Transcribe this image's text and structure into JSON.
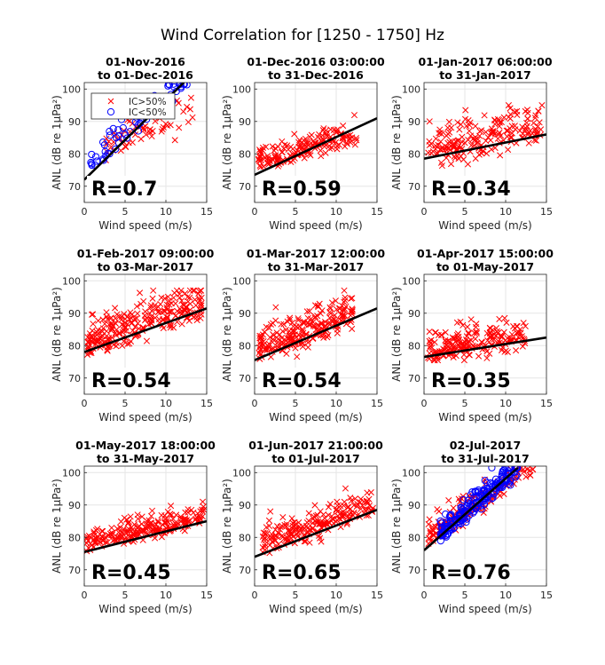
{
  "figure": {
    "title": "Wind Correlation for [1250 - 1750] Hz",
    "legend": {
      "placement": "top-left of first panel",
      "entries": [
        {
          "label": "IC>50%",
          "marker": "x",
          "color": "#ff0000"
        },
        {
          "label": "IC<50%",
          "marker": "o",
          "color": "#0000ff"
        }
      ]
    },
    "colors": {
      "ic_above": "#ff0000",
      "ic_below": "#0000ff",
      "fit": "#000000",
      "grid": "#e6e6e6"
    }
  },
  "chart_data": [
    {
      "type": "scatter",
      "title_line1": "01-Nov-2016",
      "title_line2": "to 01-Dec-2016",
      "xlabel": "Wind speed (m/s)",
      "ylabel": "ANL (dB re 1μPa²)",
      "xlim": [
        0,
        15
      ],
      "ylim": [
        65,
        102
      ],
      "xticks": [
        0,
        5,
        10,
        15
      ],
      "yticks": [
        70,
        80,
        90,
        100
      ],
      "grid": true,
      "r_label": "R=0.7",
      "fit": [
        [
          0,
          72
        ],
        [
          12.2,
          102
        ]
      ],
      "cloud_red": {
        "seed": 11,
        "n": 60,
        "xmin": 2.5,
        "xmax": 13.5,
        "a": 77,
        "b": 1.0,
        "noise": 4.5,
        "ymin": 76,
        "ymax": 98
      },
      "cloud_blue": {
        "seed": 12,
        "n": 60,
        "xmin": 0.8,
        "xmax": 12.8,
        "a": 74,
        "b": 2.2,
        "noise": 3.5,
        "ymin": 76.5,
        "ymax": 101.5
      }
    },
    {
      "type": "scatter",
      "title_line1": "01-Dec-2016 03:00:00",
      "title_line2": "to 31-Dec-2016",
      "xlabel": "Wind speed (m/s)",
      "ylabel": "ANL (dB re 1μPa²)",
      "xlim": [
        0,
        15
      ],
      "ylim": [
        65,
        102
      ],
      "xticks": [
        0,
        5,
        10,
        15
      ],
      "yticks": [
        70,
        80,
        90,
        100
      ],
      "grid": true,
      "r_label": "R=0.59",
      "fit": [
        [
          0,
          73.5
        ],
        [
          15,
          91
        ]
      ],
      "cloud_red": {
        "seed": 21,
        "n": 170,
        "xmin": 0.5,
        "xmax": 12.5,
        "a": 75.5,
        "b": 0.75,
        "noise": 2.8,
        "ymin": 74,
        "ymax": 97
      }
    },
    {
      "type": "scatter",
      "title_line1": "01-Jan-2017 06:00:00",
      "title_line2": "to 31-Jan-2017",
      "xlabel": "Wind speed (m/s)",
      "ylabel": "ANL (dB re 1μPa²)",
      "xlim": [
        0,
        15
      ],
      "ylim": [
        65,
        102
      ],
      "xticks": [
        0,
        5,
        10,
        15
      ],
      "yticks": [
        70,
        80,
        90,
        100
      ],
      "grid": true,
      "r_label": "R=0.34",
      "fit": [
        [
          0,
          78.5
        ],
        [
          15,
          86
        ]
      ],
      "cloud_red": {
        "seed": 31,
        "n": 190,
        "xmin": 0.5,
        "xmax": 14.5,
        "a": 79,
        "b": 0.5,
        "noise": 4.5,
        "ymin": 76,
        "ymax": 95
      }
    },
    {
      "type": "scatter",
      "title_line1": "01-Feb-2017 09:00:00",
      "title_line2": "to 03-Mar-2017",
      "xlabel": "Wind speed (m/s)",
      "ylabel": "ANL (dB re 1μPa²)",
      "xlim": [
        0,
        15
      ],
      "ylim": [
        65,
        102
      ],
      "xticks": [
        0,
        5,
        10,
        15
      ],
      "yticks": [
        70,
        80,
        90,
        100
      ],
      "grid": true,
      "r_label": "R=0.54",
      "fit": [
        [
          0,
          78
        ],
        [
          15,
          91.5
        ]
      ],
      "cloud_red": {
        "seed": 41,
        "n": 260,
        "xmin": 0.3,
        "xmax": 14.5,
        "a": 79,
        "b": 0.85,
        "noise": 4.5,
        "ymin": 75,
        "ymax": 97
      }
    },
    {
      "type": "scatter",
      "title_line1": "01-Mar-2017 12:00:00",
      "title_line2": "to 31-Mar-2017",
      "xlabel": "Wind speed (m/s)",
      "ylabel": "ANL (dB re 1μPa²)",
      "xlim": [
        0,
        15
      ],
      "ylim": [
        65,
        102
      ],
      "xticks": [
        0,
        5,
        10,
        15
      ],
      "yticks": [
        70,
        80,
        90,
        100
      ],
      "grid": true,
      "r_label": "R=0.54",
      "fit": [
        [
          0,
          75.5
        ],
        [
          15,
          91.5
        ]
      ],
      "cloud_red": {
        "seed": 51,
        "n": 230,
        "xmin": 0.5,
        "xmax": 12,
        "a": 76.5,
        "b": 1.0,
        "noise": 4.0,
        "ymin": 74,
        "ymax": 97
      }
    },
    {
      "type": "scatter",
      "title_line1": "01-Apr-2017 15:00:00",
      "title_line2": "to 01-May-2017",
      "xlabel": "Wind speed (m/s)",
      "ylabel": "ANL (dB re 1μPa²)",
      "xlim": [
        0,
        15
      ],
      "ylim": [
        65,
        102
      ],
      "xticks": [
        0,
        5,
        10,
        15
      ],
      "yticks": [
        70,
        80,
        90,
        100
      ],
      "grid": true,
      "r_label": "R=0.35",
      "fit": [
        [
          0,
          76.5
        ],
        [
          15,
          82.5
        ]
      ],
      "cloud_red": {
        "seed": 61,
        "n": 200,
        "xmin": 0.5,
        "xmax": 12.5,
        "a": 76.5,
        "b": 0.4,
        "noise": 3.5,
        "ymin": 75.5,
        "ymax": 94
      }
    },
    {
      "type": "scatter",
      "title_line1": "01-May-2017 18:00:00",
      "title_line2": "to 31-May-2017",
      "xlabel": "Wind speed (m/s)",
      "ylabel": "ANL (dB re 1μPa²)",
      "xlim": [
        0,
        15
      ],
      "ylim": [
        65,
        102
      ],
      "xticks": [
        0,
        5,
        10,
        15
      ],
      "yticks": [
        70,
        80,
        90,
        100
      ],
      "grid": true,
      "r_label": "R=0.45",
      "fit": [
        [
          0,
          75.5
        ],
        [
          15,
          85
        ]
      ],
      "cloud_red": {
        "seed": 71,
        "n": 220,
        "xmin": 0.3,
        "xmax": 14.8,
        "a": 77,
        "b": 0.55,
        "noise": 2.5,
        "ymin": 75.5,
        "ymax": 91
      }
    },
    {
      "type": "scatter",
      "title_line1": "01-Jun-2017 21:00:00",
      "title_line2": "to 01-Jul-2017",
      "xlabel": "Wind speed (m/s)",
      "ylabel": "ANL (dB re 1μPa²)",
      "xlim": [
        0,
        15
      ],
      "ylim": [
        65,
        102
      ],
      "xticks": [
        0,
        5,
        10,
        15
      ],
      "yticks": [
        70,
        80,
        90,
        100
      ],
      "grid": true,
      "r_label": "R=0.65",
      "fit": [
        [
          0,
          74
        ],
        [
          15,
          88.5
        ]
      ],
      "cloud_red": {
        "seed": 81,
        "n": 210,
        "xmin": 1,
        "xmax": 14.5,
        "a": 76,
        "b": 0.85,
        "noise": 3.2,
        "ymin": 75,
        "ymax": 96
      }
    },
    {
      "type": "scatter",
      "title_line1": "02-Jul-2017",
      "title_line2": "to 31-Jul-2017",
      "xlabel": "Wind speed (m/s)",
      "ylabel": "ANL (dB re 1μPa²)",
      "xlim": [
        0,
        15
      ],
      "ylim": [
        65,
        102
      ],
      "xticks": [
        0,
        5,
        10,
        15
      ],
      "yticks": [
        70,
        80,
        90,
        100
      ],
      "grid": true,
      "r_label": "R=0.76",
      "fit": [
        [
          0,
          76
        ],
        [
          11.5,
          101.5
        ]
      ],
      "cloud_red": {
        "seed": 91,
        "n": 160,
        "xmin": 0.5,
        "xmax": 13.5,
        "a": 78,
        "b": 1.7,
        "noise": 3.2,
        "ymin": 76,
        "ymax": 101
      },
      "cloud_blue": {
        "seed": 92,
        "n": 190,
        "xmin": 2,
        "xmax": 11.5,
        "a": 76,
        "b": 2.1,
        "noise": 2.8,
        "ymin": 77,
        "ymax": 101.5
      }
    }
  ]
}
